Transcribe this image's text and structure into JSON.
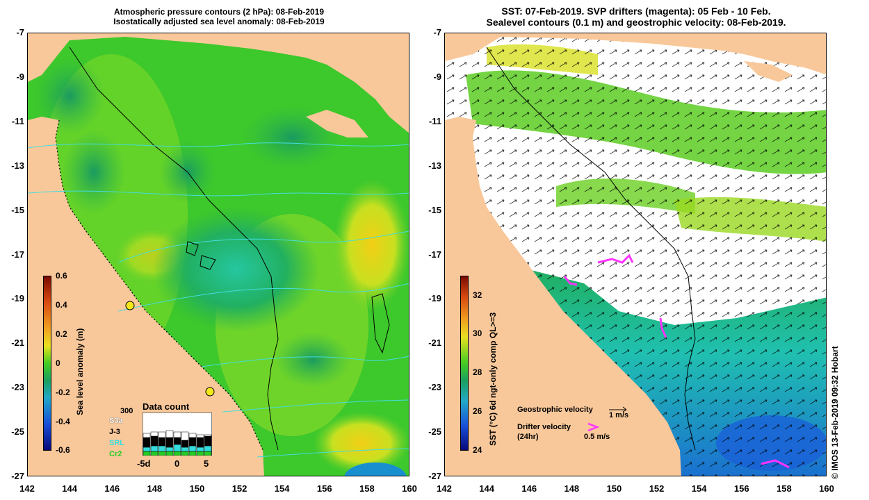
{
  "left_panel": {
    "title_line1": "Atmospheric pressure contours (2 hPa): 08-Feb-2019",
    "title_line2": "Isostatically adjusted sea level anomaly: 08-Feb-2019",
    "colorbar": {
      "label": "Sea level anomaly (m)",
      "ticks": [
        "0.6",
        "0.4",
        "0.2",
        "0",
        "-0.2",
        "-0.4",
        "-0.6"
      ],
      "range": [
        -0.6,
        0.6
      ]
    },
    "data_count": {
      "title": "Data count",
      "max_label": "300",
      "missions": [
        "S3a",
        "J-3",
        "SRL",
        "Cr2"
      ],
      "mission_colors": [
        "#ffffff",
        "#000000",
        "#33dddd",
        "#22cc22"
      ],
      "axis_ticks": [
        "-5d",
        "0",
        "5"
      ]
    }
  },
  "right_panel": {
    "title_line1": "SST: 07-Feb-2019. SVP drifters (magenta): 05 Feb - 10 Feb.",
    "title_line2": "Sealevel contours (0.1 m) and geostrophic velocity: 08-Feb-2019.",
    "colorbar": {
      "label": "SST (°C) 6d ngt-only comp QL>=3",
      "ticks": [
        "32",
        "30",
        "28",
        "26",
        "24"
      ],
      "range": [
        24,
        33
      ]
    },
    "legend": {
      "geo_label": "Geostrophic velocity",
      "geo_scale": "1 m/s",
      "drifter_label1": "Drifter velocity",
      "drifter_label2": "(24hr)",
      "drifter_scale": "0.5 m/s"
    }
  },
  "axes": {
    "y_ticks": [
      "-7",
      "-9",
      "-11",
      "-13",
      "-15",
      "-17",
      "-19",
      "-21",
      "-23",
      "-25",
      "-27"
    ],
    "x_ticks": [
      "142",
      "144",
      "146",
      "148",
      "150",
      "152",
      "154",
      "156",
      "158",
      "160"
    ],
    "lat_range": [
      -27,
      -7
    ],
    "lon_range": [
      142,
      160
    ]
  },
  "credit": "© IMOS 13-Feb-2019 09:32 Hobart",
  "colors": {
    "land": "#f9c89a",
    "sla_mid": "#3fcc2c",
    "sla_high": "#e8e020",
    "sla_low": "#1fa97a",
    "contour": "#44dddd",
    "drifter": "#ff33ff"
  }
}
